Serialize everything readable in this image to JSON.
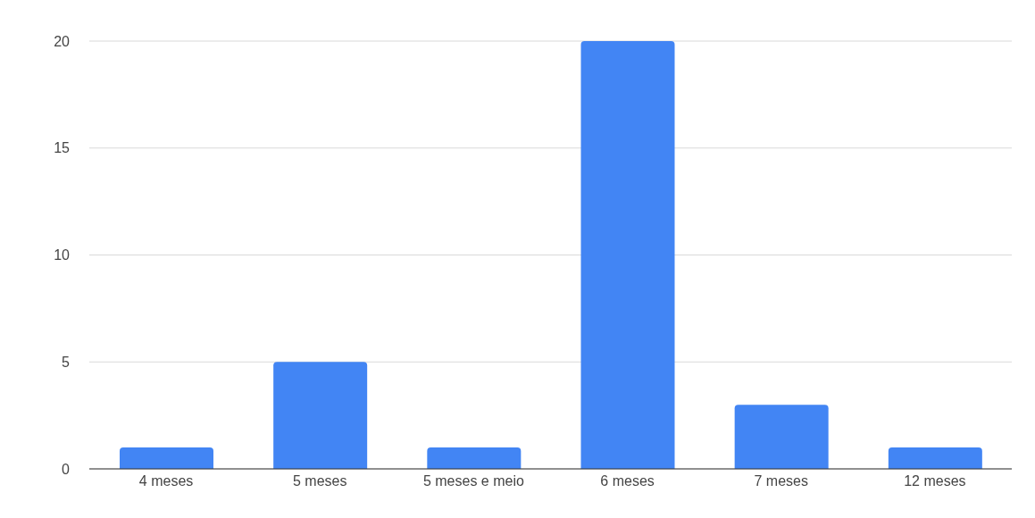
{
  "chart_data": {
    "type": "bar",
    "categories": [
      "4 meses",
      "5 meses",
      "5 meses e meio",
      "6 meses",
      "7 meses",
      "12 meses"
    ],
    "values": [
      1,
      5,
      1,
      20,
      3,
      1
    ],
    "color": "#4285f4",
    "ylim": [
      0,
      20
    ],
    "yticks": [
      0,
      5,
      10,
      15,
      20
    ],
    "grid": "y"
  }
}
